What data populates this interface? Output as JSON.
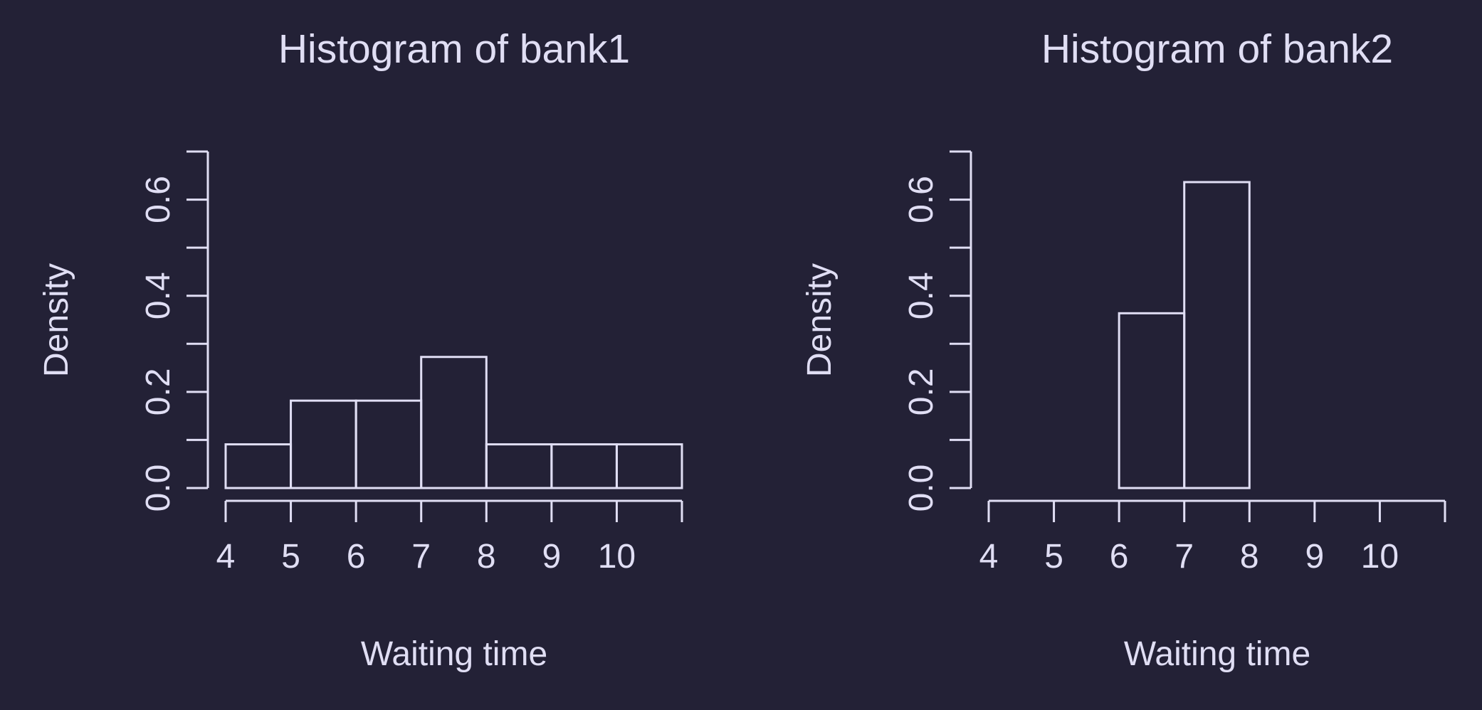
{
  "theme": {
    "background": "#232136",
    "foreground": "#e0def4"
  },
  "chart_data": [
    {
      "type": "bar",
      "subtype": "histogram",
      "title": "Histogram of bank1",
      "xlabel": "Waiting time",
      "ylabel": "Density",
      "bin_edges": [
        4,
        5,
        6,
        7,
        8,
        9,
        10,
        11
      ],
      "values": [
        0.0909,
        0.1818,
        0.1818,
        0.2727,
        0.0909,
        0.0909,
        0.0909
      ],
      "xlim": [
        4,
        11
      ],
      "ylim": [
        0,
        0.7
      ],
      "x_ticks": [
        4,
        5,
        6,
        7,
        8,
        9,
        10,
        11
      ],
      "x_tick_labels": [
        "4",
        "5",
        "6",
        "7",
        "8",
        "9",
        "10",
        ""
      ],
      "y_ticks": [
        0,
        0.1,
        0.2,
        0.3,
        0.4,
        0.5,
        0.6,
        0.7
      ],
      "y_tick_labels": [
        "0.0",
        "",
        "0.2",
        "",
        "0.4",
        "",
        "0.6",
        ""
      ],
      "grid": false,
      "legend": "none"
    },
    {
      "type": "bar",
      "subtype": "histogram",
      "title": "Histogram of bank2",
      "xlabel": "Waiting time",
      "ylabel": "Density",
      "bin_edges": [
        6,
        7,
        8
      ],
      "values": [
        0.3636,
        0.6364
      ],
      "xlim": [
        4,
        11
      ],
      "ylim": [
        0,
        0.7
      ],
      "x_ticks": [
        4,
        5,
        6,
        7,
        8,
        9,
        10,
        11
      ],
      "x_tick_labels": [
        "4",
        "5",
        "6",
        "7",
        "8",
        "9",
        "10",
        ""
      ],
      "y_ticks": [
        0,
        0.1,
        0.2,
        0.3,
        0.4,
        0.5,
        0.6,
        0.7
      ],
      "y_tick_labels": [
        "0.0",
        "",
        "0.2",
        "",
        "0.4",
        "",
        "0.6",
        ""
      ],
      "grid": false,
      "legend": "none"
    }
  ]
}
